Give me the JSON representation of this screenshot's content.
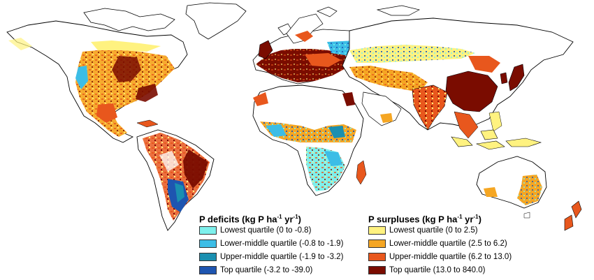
{
  "legend_deficits": {
    "title_parts": [
      "P deficits (kg P ha",
      "-1",
      " yr",
      "-1",
      ")"
    ],
    "items": [
      {
        "label": "Lowest quartile (0 to -0.8)",
        "color": "#7ef0ec"
      },
      {
        "label": "Lower-middle quartile (-0.8 to -1.9)",
        "color": "#3cbde6"
      },
      {
        "label": "Upper-middle quartile (-1.9 to -3.2)",
        "color": "#1a8fb0"
      },
      {
        "label": "Top quartile (-3.2 to -39.0)",
        "color": "#1e55b0"
      }
    ]
  },
  "legend_surpluses": {
    "title_parts": [
      "P surpluses (kg P ha",
      "-1",
      " yr",
      "-1",
      ")"
    ],
    "items": [
      {
        "label": "Lowest quartile (0 to 2.5)",
        "color": "#fff280"
      },
      {
        "label": "Lower-middle quartile (2.5 to 6.2)",
        "color": "#f5a623"
      },
      {
        "label": "Upper-middle quartile (6.2 to 13.0)",
        "color": "#e8571d"
      },
      {
        "label": "Top quartile (13.0 to 840.0)",
        "color": "#7a0c00"
      }
    ]
  }
}
